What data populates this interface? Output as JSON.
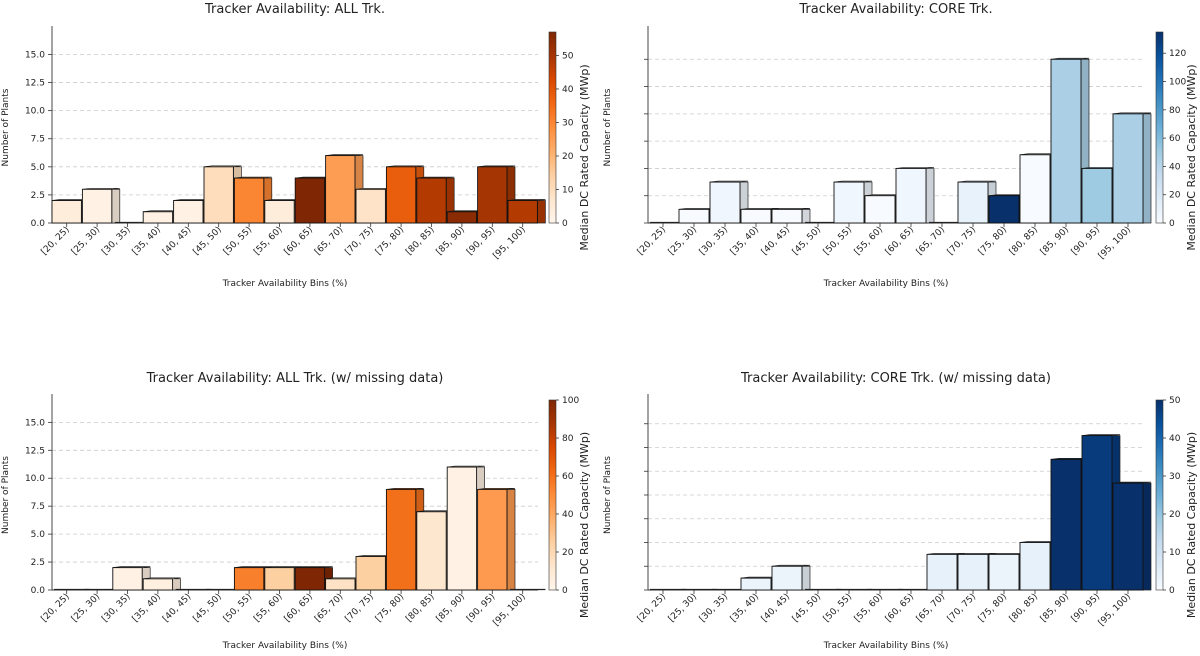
{
  "chart_data": [
    {
      "type": "bar",
      "title": "Tracker Availability: ALL Trk.",
      "xlabel": "Tracker Availability Bins (%)",
      "ylabel": "Number of Plants",
      "colorbar_label": "Median DC Rated Capacity (MWp)",
      "colormap": "Oranges",
      "categories": [
        "[20, 25)",
        "[25, 30)",
        "[30, 35)",
        "[35, 40)",
        "[40, 45)",
        "[45, 50)",
        "[50, 55)",
        "[55, 60)",
        "[60, 65)",
        "[65, 70)",
        "[70, 75)",
        "[75, 80)",
        "[80, 85)",
        "[85, 90)",
        "[90, 95)",
        "[95, 100)"
      ],
      "values": [
        2,
        3,
        0,
        1,
        2,
        5,
        4,
        2,
        4,
        6,
        3,
        5,
        4,
        1,
        5,
        2
      ],
      "color_values": [
        4,
        2,
        0,
        2,
        2,
        10,
        30,
        4,
        58,
        25,
        8,
        38,
        48,
        55,
        50,
        48
      ],
      "ylim": [
        0,
        17
      ],
      "yticks": [
        "0.0",
        "2.5",
        "5.0",
        "7.5",
        "10.0",
        "12.5",
        "15.0"
      ],
      "ytick_values": [
        0,
        2.5,
        5,
        7.5,
        10,
        12.5,
        15
      ],
      "show_ytick_labels": true,
      "colorbar_range": [
        0,
        57
      ],
      "colorbar_ticks": [
        0,
        10,
        20,
        30,
        40,
        50
      ],
      "grid": "y-dashed"
    },
    {
      "type": "bar",
      "title": "Tracker Availability: CORE Trk.",
      "xlabel": "Tracker Availability Bins (%)",
      "ylabel": "Number of Plants",
      "colorbar_label": "Median DC Rated Capacity (MWp)",
      "colormap": "Blues",
      "categories": [
        "[20, 25)",
        "[25, 30)",
        "[30, 35)",
        "[35, 40)",
        "[40, 45)",
        "[45, 50)",
        "[50, 55)",
        "[55, 60)",
        "[60, 65)",
        "[65, 70)",
        "[70, 75)",
        "[75, 80)",
        "[80, 85)",
        "[85, 90)",
        "[90, 95)",
        "[95, 100)"
      ],
      "values": [
        0,
        1,
        3,
        1,
        1,
        0,
        3,
        2,
        4,
        0,
        3,
        2,
        5,
        12,
        4,
        8
      ],
      "color_values": [
        0,
        0,
        5,
        0,
        0,
        0,
        5,
        0,
        5,
        0,
        10,
        135,
        0,
        45,
        50,
        45
      ],
      "ylim": [
        0,
        14
      ],
      "yticks": [],
      "ytick_values": [
        0,
        2,
        4,
        6,
        8,
        10,
        12
      ],
      "show_ytick_labels": false,
      "colorbar_range": [
        0,
        135
      ],
      "colorbar_ticks": [
        0,
        20,
        40,
        60,
        80,
        100,
        120
      ],
      "grid": "y-dashed"
    },
    {
      "type": "bar",
      "title": "Tracker Availability: ALL Trk. (w/ missing data)",
      "xlabel": "Tracker Availability Bins (%)",
      "ylabel": "Number of Plants",
      "colorbar_label": "Median DC Rated Capacity (MWp)",
      "colormap": "Oranges",
      "categories": [
        "[20, 25)",
        "[25, 30)",
        "[30, 35)",
        "[35, 40)",
        "[40, 45)",
        "[45, 50)",
        "[50, 55)",
        "[55, 60)",
        "[60, 65)",
        "[65, 70)",
        "[70, 75)",
        "[75, 80)",
        "[80, 85)",
        "[85, 90)",
        "[90, 95)",
        "[95, 100)"
      ],
      "values": [
        0,
        0,
        2,
        1,
        0,
        0,
        2,
        2,
        2,
        1,
        3,
        9,
        7,
        11,
        9,
        0
      ],
      "color_values": [
        0,
        0,
        3,
        5,
        0,
        0,
        55,
        25,
        100,
        15,
        25,
        60,
        12,
        3,
        45,
        0
      ],
      "ylim": [
        0,
        17
      ],
      "yticks": [
        "0.0",
        "2.5",
        "5.0",
        "7.5",
        "10.0",
        "12.5",
        "15.0"
      ],
      "ytick_values": [
        0,
        2.5,
        5,
        7.5,
        10,
        12.5,
        15
      ],
      "show_ytick_labels": true,
      "colorbar_range": [
        0,
        100
      ],
      "colorbar_ticks": [
        0,
        20,
        40,
        60,
        80,
        100
      ],
      "grid": "y-dashed"
    },
    {
      "type": "bar",
      "title": "Tracker Availability: CORE Trk. (w/ missing data)",
      "xlabel": "Tracker Availability Bins (%)",
      "ylabel": "Number of Plants",
      "colorbar_label": "Median DC Rated Capacity (MWp)",
      "colormap": "Blues",
      "categories": [
        "[20, 25)",
        "[25, 30)",
        "[30, 35)",
        "[35, 40)",
        "[40, 45)",
        "[45, 50)",
        "[50, 55)",
        "[55, 60)",
        "[60, 65)",
        "[65, 70)",
        "[70, 75)",
        "[75, 80)",
        "[80, 85)",
        "[85, 90)",
        "[90, 95)",
        "[95, 100)"
      ],
      "values": [
        0,
        0,
        0,
        1,
        2,
        0,
        0,
        0,
        0,
        3,
        3,
        3,
        4,
        11,
        13,
        9
      ],
      "color_values": [
        0,
        0,
        0,
        3,
        3,
        0,
        0,
        0,
        0,
        4,
        4,
        3,
        4,
        50,
        48,
        50
      ],
      "ylim": [
        0,
        16
      ],
      "yticks": [],
      "ytick_values": [
        0,
        2,
        4,
        6,
        8,
        10,
        12,
        14
      ],
      "show_ytick_labels": false,
      "colorbar_range": [
        0,
        50
      ],
      "colorbar_ticks": [
        0,
        10,
        20,
        30,
        40,
        50
      ],
      "grid": "y-dashed"
    }
  ]
}
